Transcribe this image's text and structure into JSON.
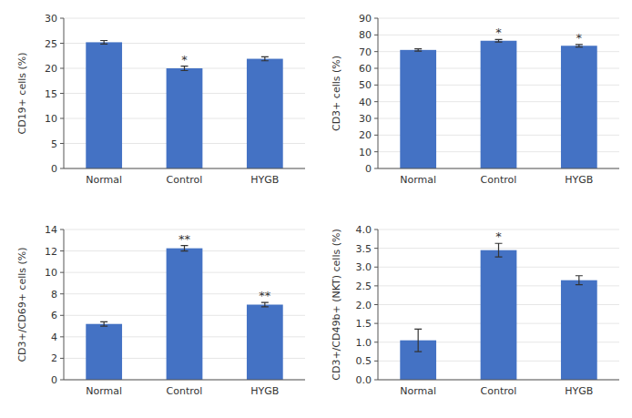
{
  "chart_data": [
    {
      "type": "bar",
      "ylabel": "CD19+ cells (%)",
      "categories": [
        "Normal",
        "Control",
        "HYGB"
      ],
      "values": [
        25.2,
        20.0,
        21.9
      ],
      "errors": [
        0.35,
        0.45,
        0.4
      ],
      "annotations": [
        {
          "category": "Control",
          "text": "*"
        }
      ],
      "color": "#4472C4",
      "ylim": [
        0,
        30
      ],
      "yticks": [
        0,
        5,
        10,
        15,
        20,
        25,
        30
      ]
    },
    {
      "type": "bar",
      "ylabel": "CD3+ cells (%)",
      "categories": [
        "Normal",
        "Control",
        "HYGB"
      ],
      "values": [
        71.0,
        76.5,
        73.5
      ],
      "errors": [
        0.7,
        0.7,
        0.8
      ],
      "annotations": [
        {
          "category": "Control",
          "text": "*"
        },
        {
          "category": "HYGB",
          "text": "*"
        }
      ],
      "color": "#4472C4",
      "ylim": [
        0,
        90
      ],
      "yticks": [
        0,
        10,
        20,
        30,
        40,
        50,
        60,
        70,
        80,
        90
      ]
    },
    {
      "type": "bar",
      "ylabel": "CD3+/CD69+ cells (%)",
      "categories": [
        "Normal",
        "Control",
        "HYGB"
      ],
      "values": [
        5.2,
        12.25,
        7.0
      ],
      "errors": [
        0.2,
        0.25,
        0.2
      ],
      "annotations": [
        {
          "category": "Control",
          "text": "**"
        },
        {
          "category": "HYGB",
          "text": "**"
        }
      ],
      "color": "#4472C4",
      "ylim": [
        0,
        14
      ],
      "yticks": [
        0,
        2,
        4,
        6,
        8,
        10,
        12,
        14
      ]
    },
    {
      "type": "bar",
      "ylabel": "CD3+/CD49b+ (NKT) cells (%)",
      "categories": [
        "Normal",
        "Control",
        "HYGB"
      ],
      "values": [
        1.05,
        3.45,
        2.65
      ],
      "errors": [
        0.3,
        0.18,
        0.12
      ],
      "annotations": [
        {
          "category": "Control",
          "text": "*"
        }
      ],
      "color": "#4472C4",
      "ylim": [
        0,
        4
      ],
      "yticks": [
        {
          "value": 0,
          "label": "0.0"
        },
        0.5,
        {
          "value": 1.0,
          "label": "1.0"
        },
        1.5,
        {
          "value": 2.0,
          "label": "2.0"
        },
        2.5,
        {
          "value": 3.0,
          "label": "3.0"
        },
        3.5,
        {
          "value": 4.0,
          "label": "4.0"
        }
      ]
    }
  ]
}
